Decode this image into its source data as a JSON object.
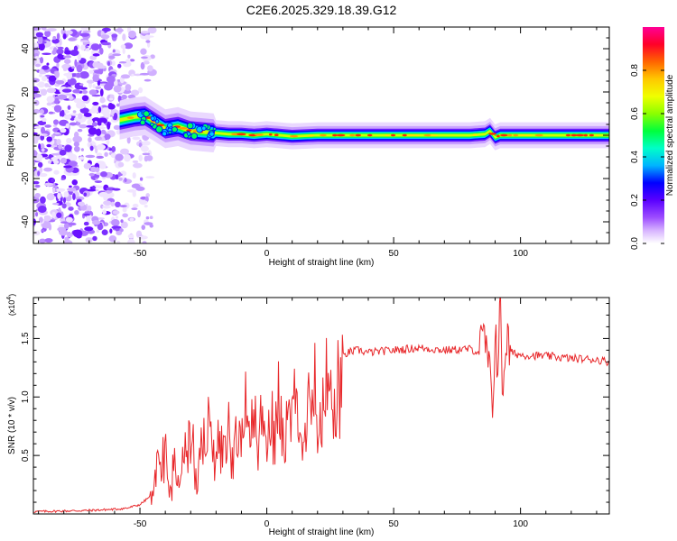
{
  "figure": {
    "title": "C2E6.2025.329.18.39.G12"
  },
  "chart_data": [
    {
      "type": "heatmap",
      "xlabel": "Height of straight line (km)",
      "ylabel": "Frequency (Hz)",
      "xlim": [
        -92,
        135
      ],
      "ylim": [
        -50,
        50
      ],
      "xticks": [
        -50,
        0,
        50,
        100
      ],
      "yticks": [
        -40,
        -20,
        0,
        20,
        40
      ],
      "colorbar": {
        "label": "Normalized spectral amplitude",
        "range": [
          0,
          1
        ],
        "ticks": [
          0.0,
          0.2,
          0.4,
          0.6,
          0.8
        ],
        "tick_labels": [
          "0.0",
          "0.2",
          "0.4",
          "0.6",
          "0.8"
        ],
        "colors": [
          "#ffffff",
          "#c080ff",
          "#6a00ff",
          "#0000ff",
          "#00ccff",
          "#00ff40",
          "#c8ff00",
          "#ffff00",
          "#ff8800",
          "#ff0000",
          "#ff00aa"
        ],
        "placement": "right"
      },
      "ridge": {
        "x": [
          -58,
          -52,
          -48,
          -44,
          -40,
          -35,
          -30,
          -25,
          -20,
          -15,
          -10,
          -5,
          0,
          5,
          10,
          20,
          40,
          60,
          80,
          86,
          88,
          90,
          92,
          100,
          120,
          135
        ],
        "frequency": [
          7,
          8.5,
          9,
          6,
          3,
          4,
          2,
          1.5,
          1,
          0.5,
          0.5,
          0,
          0.5,
          0,
          -0.5,
          0,
          0,
          0,
          0,
          0.5,
          2,
          -1,
          0,
          0,
          0,
          0
        ]
      },
      "noise_region_x": [
        -92,
        -45
      ]
    },
    {
      "type": "line",
      "xlabel": "Height of straight line (km)",
      "ylabel": "SNR (10 * v/v)",
      "y_multiplier": "(x10^4)",
      "xlim": [
        -92,
        135
      ],
      "ylim": [
        0,
        1.85
      ],
      "xticks": [
        -50,
        0,
        50,
        100
      ],
      "yticks": [
        0.5,
        1.0,
        1.5
      ],
      "ytick_labels": [
        "0.5",
        "1.0",
        "1.5"
      ],
      "series": [
        {
          "color": "#e8282b",
          "x": [
            -92,
            -80,
            -70,
            -60,
            -55,
            -50,
            -46,
            -44,
            -42,
            -40,
            -38,
            -36,
            -34,
            -32,
            -30,
            -28,
            -26,
            -24,
            -22,
            -20,
            -18,
            -16,
            -14,
            -12,
            -10,
            -8,
            -6,
            -4,
            -2,
            0,
            2,
            4,
            6,
            8,
            10,
            12,
            14,
            16,
            18,
            20,
            24,
            28,
            32,
            36,
            40,
            50,
            60,
            70,
            80,
            84,
            86,
            88,
            89,
            90,
            91,
            92,
            93,
            94,
            96,
            100,
            110,
            120,
            130,
            135
          ],
          "y": [
            0.02,
            0.025,
            0.03,
            0.04,
            0.05,
            0.08,
            0.15,
            0.3,
            0.45,
            0.6,
            0.3,
            0.45,
            0.35,
            0.5,
            0.7,
            0.45,
            0.5,
            0.65,
            0.8,
            0.55,
            0.6,
            0.85,
            0.5,
            0.9,
            0.6,
            0.95,
            0.7,
            0.8,
            0.85,
            1.0,
            0.75,
            1.05,
            0.8,
            1.0,
            1.05,
            1.1,
            0.95,
            1.15,
            1.2,
            1.1,
            1.25,
            1.3,
            1.38,
            1.4,
            1.38,
            1.4,
            1.42,
            1.4,
            1.41,
            1.38,
            1.5,
            1.1,
            0.9,
            1.6,
            1.3,
            1.75,
            1.0,
            1.5,
            1.38,
            1.36,
            1.35,
            1.33,
            1.32,
            1.3
          ]
        }
      ]
    }
  ]
}
